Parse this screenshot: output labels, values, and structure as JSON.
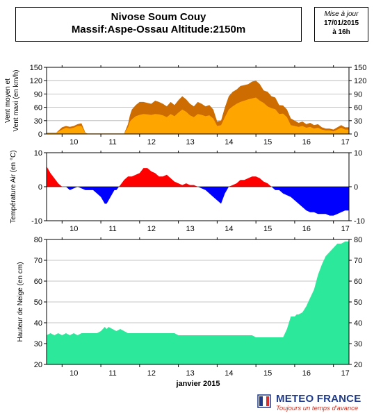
{
  "header": {
    "title_line1": "Nivose Soum Couy",
    "title_line2": "Massif:Aspe-Ossau Altitude:2150m",
    "update_label": "Mise à jour",
    "update_date": "17/01/2015",
    "update_time": "à 16h"
  },
  "logo": {
    "name": "METEO FRANCE",
    "tagline": "Toujours un temps d'avance"
  },
  "colors": {
    "wind_mean": "#ffa500",
    "wind_max": "#cd6c00",
    "temp_positive": "#ff0000",
    "temp_negative": "#0000ff",
    "snow": "#2ce89a"
  },
  "chart_data": [
    {
      "type": "area",
      "ylabel_line1": "Vent moyen et",
      "ylabel_line2": "Vent maxi (en km/h)",
      "x": [
        9.6,
        9.85,
        10.0,
        10.1,
        10.2,
        10.3,
        10.4,
        10.5,
        10.6,
        10.65,
        10.7,
        10.8,
        10.9,
        11.0,
        11.2,
        11.4,
        11.6,
        11.7,
        11.75,
        11.8,
        11.9,
        12.0,
        12.1,
        12.2,
        12.3,
        12.4,
        12.5,
        12.6,
        12.7,
        12.8,
        12.9,
        13.0,
        13.1,
        13.2,
        13.3,
        13.4,
        13.5,
        13.6,
        13.7,
        13.8,
        13.9,
        14.0,
        14.1,
        14.2,
        14.3,
        14.4,
        14.5,
        14.6,
        14.7,
        14.8,
        14.9,
        15.0,
        15.1,
        15.2,
        15.3,
        15.4,
        15.5,
        15.6,
        15.7,
        15.8,
        15.9,
        16.0,
        16.1,
        16.2,
        16.3,
        16.4,
        16.5,
        16.6,
        16.7,
        16.8,
        16.9,
        17.0,
        17.1,
        17.2,
        17.3,
        17.4
      ],
      "series": [
        {
          "values": [
            3,
            3,
            10,
            14,
            12,
            14,
            18,
            18,
            2,
            1,
            1,
            1,
            1,
            1,
            1,
            1,
            1,
            15,
            28,
            33,
            40,
            43,
            45,
            44,
            43,
            45,
            44,
            42,
            38,
            45,
            40,
            48,
            55,
            50,
            42,
            38,
            45,
            43,
            40,
            42,
            35,
            18,
            20,
            38,
            55,
            62,
            68,
            72,
            75,
            78,
            80,
            82,
            75,
            70,
            62,
            58,
            56,
            45,
            46,
            38,
            20,
            18,
            16,
            18,
            14,
            16,
            12,
            14,
            10,
            8,
            8,
            6,
            10,
            14,
            10,
            10
          ]
        },
        {
          "values": [
            3,
            3,
            15,
            18,
            16,
            18,
            22,
            24,
            3,
            1,
            1,
            1,
            1,
            1,
            1,
            1,
            1,
            22,
            42,
            55,
            65,
            72,
            72,
            70,
            68,
            75,
            72,
            68,
            62,
            72,
            65,
            76,
            85,
            78,
            68,
            62,
            72,
            68,
            62,
            65,
            55,
            28,
            30,
            60,
            85,
            95,
            100,
            108,
            110,
            112,
            118,
            120,
            112,
            98,
            95,
            85,
            82,
            65,
            64,
            55,
            35,
            30,
            25,
            28,
            22,
            25,
            20,
            22,
            15,
            12,
            12,
            10,
            15,
            20,
            15,
            15
          ]
        }
      ],
      "ylim": [
        0,
        150
      ],
      "yticks": [
        0,
        30,
        60,
        90,
        120,
        150
      ],
      "xlim": [
        9.6,
        17.4
      ],
      "xticks": [
        10,
        11,
        12,
        13,
        14,
        15,
        16,
        17
      ],
      "xtick_labels": [
        "10",
        "11",
        "12",
        "13",
        "14",
        "15",
        "16",
        "17"
      ]
    },
    {
      "type": "area",
      "ylabel": "Température Air (en °C)",
      "x": [
        9.6,
        9.65,
        9.7,
        9.8,
        9.9,
        10.0,
        10.1,
        10.2,
        10.3,
        10.4,
        10.5,
        10.6,
        10.7,
        10.8,
        10.9,
        11.0,
        11.1,
        11.15,
        11.2,
        11.3,
        11.35,
        11.4,
        11.5,
        11.6,
        11.7,
        11.8,
        11.9,
        12.0,
        12.1,
        12.2,
        12.3,
        12.4,
        12.5,
        12.6,
        12.7,
        12.8,
        12.9,
        13.0,
        13.1,
        13.2,
        13.3,
        13.4,
        13.5,
        13.6,
        13.7,
        13.8,
        13.9,
        14.0,
        14.1,
        14.2,
        14.3,
        14.4,
        14.5,
        14.6,
        14.7,
        14.8,
        14.9,
        15.0,
        15.1,
        15.2,
        15.3,
        15.4,
        15.5,
        15.6,
        15.7,
        15.8,
        15.9,
        16.0,
        16.1,
        16.2,
        16.3,
        16.4,
        16.5,
        16.6,
        16.7,
        16.8,
        16.9,
        17.0,
        17.1,
        17.2,
        17.3,
        17.4
      ],
      "values": [
        6,
        5,
        4,
        2.5,
        1,
        0,
        0,
        -1,
        -0.5,
        0,
        -0.5,
        -1,
        -1,
        -1,
        -2,
        -3,
        -5,
        -5,
        -4,
        -2,
        -1,
        -1,
        0.5,
        2,
        3,
        3,
        3.5,
        4,
        5.5,
        5.5,
        4.5,
        4,
        3,
        3,
        3.5,
        2.5,
        1.5,
        1,
        0.5,
        1,
        0.5,
        0.5,
        0,
        -0.5,
        -1,
        -2,
        -3,
        -4,
        -5,
        -2,
        0,
        0.5,
        1,
        2,
        2,
        2.5,
        3,
        3,
        2.5,
        1.5,
        1,
        0,
        -1,
        -1,
        -2,
        -2.5,
        -3,
        -4,
        -5,
        -6,
        -7,
        -7.5,
        -7.5,
        -8,
        -8,
        -8,
        -8.5,
        -8.5,
        -8,
        -7.5,
        -7,
        -7
      ],
      "ylim": [
        -10,
        10
      ],
      "yticks": [
        -10,
        0,
        10
      ],
      "xlim": [
        9.6,
        17.4
      ],
      "xticks": [
        10,
        11,
        12,
        13,
        14,
        15,
        16,
        17
      ],
      "xtick_labels": [
        "10",
        "11",
        "12",
        "13",
        "14",
        "15",
        "16",
        "17"
      ]
    },
    {
      "type": "area",
      "ylabel": "Hauteur de Neige (en cm)",
      "xlabel": "janvier 2015",
      "x": [
        9.6,
        9.7,
        9.8,
        9.9,
        10.0,
        10.1,
        10.2,
        10.3,
        10.4,
        10.5,
        10.6,
        10.7,
        10.8,
        10.9,
        11.0,
        11.1,
        11.15,
        11.2,
        11.3,
        11.4,
        11.5,
        11.6,
        11.7,
        11.8,
        11.9,
        12.0,
        12.1,
        12.2,
        12.3,
        12.4,
        12.5,
        12.6,
        12.7,
        12.8,
        12.9,
        13.0,
        13.1,
        13.2,
        13.3,
        13.4,
        13.5,
        13.6,
        13.7,
        13.8,
        13.9,
        14.0,
        14.1,
        14.2,
        14.3,
        14.4,
        14.5,
        14.6,
        14.7,
        14.8,
        14.9,
        15.0,
        15.1,
        15.2,
        15.3,
        15.4,
        15.5,
        15.6,
        15.65,
        15.7,
        15.75,
        15.8,
        15.85,
        15.9,
        16.0,
        16.05,
        16.1,
        16.2,
        16.3,
        16.35,
        16.4,
        16.5,
        16.6,
        16.7,
        16.8,
        16.9,
        17.0,
        17.1,
        17.2,
        17.3,
        17.4
      ],
      "values": [
        34,
        35,
        34,
        35,
        34,
        35,
        34,
        35,
        34,
        35,
        35,
        35,
        35,
        35,
        36,
        38,
        37,
        38,
        37,
        36,
        37,
        36,
        35,
        35,
        35,
        35,
        35,
        35,
        35,
        35,
        35,
        35,
        35,
        35,
        35,
        34,
        34,
        34,
        34,
        34,
        34,
        34,
        34,
        34,
        34,
        34,
        34,
        34,
        34,
        34,
        34,
        34,
        34,
        34,
        34,
        33,
        33,
        33,
        33,
        33,
        33,
        33,
        33,
        33,
        35,
        37,
        40,
        43,
        43,
        44,
        44,
        45,
        48,
        50,
        52,
        56,
        63,
        68,
        72,
        74,
        76,
        78,
        78,
        79,
        79
      ],
      "ylim": [
        20,
        80
      ],
      "yticks": [
        20,
        30,
        40,
        50,
        60,
        70,
        80
      ],
      "xlim": [
        9.6,
        17.4
      ],
      "xticks": [
        10,
        11,
        12,
        13,
        14,
        15,
        16,
        17
      ],
      "xtick_labels": [
        "10",
        "11",
        "12",
        "13",
        "14",
        "15",
        "16",
        "17"
      ]
    }
  ]
}
